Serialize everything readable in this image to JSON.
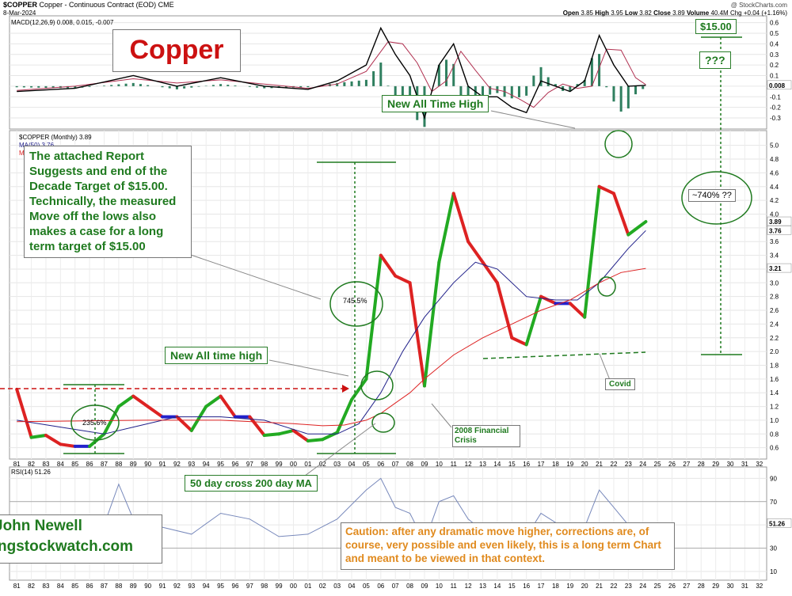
{
  "header": {
    "symbol": "$COPPER",
    "description": "Copper - Continuous Contract (EOD)",
    "exchange": "CME",
    "date": "8-Mar-2024",
    "watermark": "@ StockCharts.com",
    "ohlc": {
      "open_label": "Open",
      "open": "3.85",
      "high_label": "High",
      "high": "3.95",
      "low_label": "Low",
      "low": "3.82",
      "close_label": "Close",
      "close": "3.89",
      "volume_label": "Volume",
      "volume": "40.4M",
      "change": "Chg +0.04 (+1.16%)"
    }
  },
  "legends": {
    "macd": "MACD(12,26,9) 0.008, 0.015, -0.007",
    "price": "$COPPER (Monthly) 3.89",
    "ma50": "MA(50) 3.76",
    "ma200": "MA",
    "rsi": "RSI(14) 51.26"
  },
  "annotations": {
    "title": "Copper",
    "report": "The attached Report Suggests and end of the Decade Target of $15.00. Technically, the measured Move off the lows also makes a case for a long term target of $15.00",
    "new_all_time_high": "New All Time High",
    "new_all_time_high_2": "New All time high",
    "cross": "50 day cross 200 day MA",
    "crisis": "2008 Financial Crisis",
    "covid": "Covid",
    "target": "$15.00",
    "question": "???",
    "pct_future": "~740% ??",
    "pct_745": "745.5%",
    "pct_235": "235.6%",
    "author_name": "John Newell",
    "author_site": "ngstockwatch.com",
    "caution": "Caution: after any dramatic move higher, corrections are, of course, very possible and even likely, this is a long term Chart and meant to be viewed in that context."
  },
  "colors": {
    "up": "#22aa22",
    "down": "#dd2222",
    "neutral": "#2222cc",
    "ma50": "#20208a",
    "ma200": "#dd2222",
    "macd_line": "#000000",
    "signal_line": "#b03050",
    "histogram": "#2f7f5f",
    "annotation_green": "#1f7a1f",
    "caution_orange": "#e08a1e"
  },
  "chart_data": [
    {
      "type": "line",
      "panel": "price",
      "yscale": "linear",
      "ylim": [
        0.55,
        5.1
      ],
      "x_ticks": [
        "81",
        "82",
        "83",
        "84",
        "85",
        "86",
        "87",
        "88",
        "89",
        "90",
        "91",
        "92",
        "93",
        "94",
        "95",
        "96",
        "97",
        "98",
        "99",
        "00",
        "01",
        "02",
        "03",
        "04",
        "05",
        "06",
        "07",
        "08",
        "09",
        "10",
        "11",
        "12",
        "13",
        "14",
        "15",
        "16",
        "17",
        "18",
        "19",
        "20",
        "21",
        "22",
        "23",
        "24",
        "25",
        "26",
        "27",
        "28",
        "29",
        "30",
        "31",
        "32"
      ],
      "y_ticks": [
        "0.6",
        "0.8",
        "1.0",
        "1.2",
        "1.4",
        "1.6",
        "1.8",
        "2.0",
        "2.2",
        "2.4",
        "2.6",
        "2.8",
        "3.0",
        "3.2",
        "3.4",
        "3.6",
        "3.8",
        "4.0",
        "4.2",
        "4.4",
        "4.6",
        "4.8",
        "5.0"
      ],
      "price_badges": [
        "3.89",
        "3.76",
        "3.21"
      ],
      "series": [
        {
          "name": "$COPPER (Monthly)",
          "x": [
            1981,
            1982,
            1983,
            1984,
            1985,
            1986,
            1987,
            1988,
            1989,
            1990,
            1991,
            1992,
            1993,
            1994,
            1995,
            1996,
            1997,
            1998,
            1999,
            2000,
            2001,
            2002,
            2003,
            2004,
            2005,
            2006,
            2007,
            2008,
            2009,
            2010,
            2011,
            2012,
            2013,
            2014,
            2015,
            2016,
            2017,
            2018,
            2019,
            2020,
            2021,
            2022,
            2023,
            2024.2
          ],
          "values": [
            1.45,
            0.75,
            0.78,
            0.65,
            0.62,
            0.62,
            0.8,
            1.2,
            1.35,
            1.2,
            1.05,
            1.05,
            0.85,
            1.2,
            1.35,
            1.05,
            1.05,
            0.78,
            0.8,
            0.85,
            0.7,
            0.72,
            0.82,
            1.3,
            1.6,
            3.4,
            3.1,
            3.0,
            1.5,
            3.3,
            4.3,
            3.6,
            3.3,
            3.0,
            2.2,
            2.1,
            2.8,
            2.7,
            2.7,
            2.5,
            4.4,
            4.3,
            3.7,
            3.89
          ]
        },
        {
          "name": "MA(50)",
          "x": [
            1981,
            1984,
            1987,
            1989,
            1992,
            1995,
            1998,
            2001,
            2003,
            2004.5,
            2006,
            2007.5,
            2009,
            2011,
            2012.5,
            2014,
            2016,
            2018,
            2019.5,
            2021,
            2023,
            2024.2
          ],
          "values": [
            1.0,
            0.9,
            0.8,
            0.9,
            1.05,
            1.05,
            1.0,
            0.8,
            0.8,
            0.95,
            1.4,
            2.0,
            2.5,
            3.0,
            3.3,
            3.2,
            2.8,
            2.75,
            2.75,
            3.0,
            3.5,
            3.76
          ]
        },
        {
          "name": "MA",
          "x": [
            1981,
            1990,
            1995,
            2000,
            2002,
            2003.5,
            2005,
            2006,
            2007,
            2008,
            2009,
            2011,
            2013,
            2015,
            2017,
            2019,
            2021,
            2022.5,
            2024.2
          ],
          "values": [
            0.98,
            1.0,
            1.0,
            0.95,
            0.92,
            0.93,
            1.0,
            1.1,
            1.25,
            1.4,
            1.6,
            1.95,
            2.2,
            2.4,
            2.6,
            2.75,
            3.0,
            3.15,
            3.21
          ]
        }
      ]
    },
    {
      "type": "line",
      "panel": "macd",
      "ylim": [
        -0.33,
        0.62
      ],
      "y_ticks": [
        "-0.3",
        "-0.2",
        "-0.1",
        "0.0",
        "0.1",
        "0.2",
        "0.3",
        "0.4",
        "0.5",
        "0.6"
      ],
      "price_badges": [
        "0.008"
      ],
      "series": [
        {
          "name": "MACD",
          "x": [
            1981,
            1985,
            1989,
            1992,
            1995,
            1998,
            2001,
            2003,
            2005,
            2006,
            2007,
            2008,
            2009,
            2010,
            2011,
            2012,
            2013,
            2014,
            2015,
            2016,
            2017,
            2018,
            2019,
            2020,
            2021,
            2022,
            2023,
            2024.2
          ],
          "values": [
            -0.05,
            -0.02,
            0.1,
            0.0,
            0.08,
            0.0,
            -0.03,
            0.05,
            0.2,
            0.55,
            0.3,
            0.1,
            -0.3,
            0.2,
            0.4,
            0.0,
            -0.1,
            -0.1,
            -0.2,
            -0.25,
            0.05,
            0.0,
            -0.05,
            0.05,
            0.48,
            0.2,
            0.0,
            0.008
          ]
        },
        {
          "name": "Signal",
          "x": [
            1981,
            1985,
            1989,
            1992,
            1995,
            1998,
            2001,
            2003,
            2005,
            2006.5,
            2007.5,
            2008.5,
            2009.5,
            2010.5,
            2011.5,
            2012.5,
            2013.5,
            2014.5,
            2015.5,
            2016.5,
            2017.5,
            2018.5,
            2019.5,
            2020.5,
            2021.5,
            2022.5,
            2023.5,
            2024.2
          ],
          "values": [
            -0.04,
            0.0,
            0.07,
            0.03,
            0.06,
            0.02,
            -0.02,
            0.02,
            0.14,
            0.42,
            0.4,
            0.22,
            -0.05,
            0.05,
            0.33,
            0.15,
            -0.02,
            -0.05,
            -0.12,
            -0.2,
            -0.06,
            0.02,
            -0.02,
            0.0,
            0.35,
            0.34,
            0.08,
            0.015
          ]
        }
      ]
    },
    {
      "type": "line",
      "panel": "rsi",
      "ylim": [
        10,
        95
      ],
      "y_ticks": [
        "10",
        "30",
        "50",
        "70",
        "90"
      ],
      "price_badges": [
        "51.26"
      ],
      "series": [
        {
          "name": "RSI(14)",
          "x": [
            1981,
            1983,
            1985,
            1987,
            1988,
            1989,
            1991,
            1993,
            1995,
            1997,
            1999,
            2001,
            2003,
            2005,
            2006,
            2007,
            2008,
            2009,
            2010,
            2011,
            2012,
            2013,
            2014,
            2015,
            2016,
            2017,
            2018,
            2019,
            2020,
            2021,
            2022,
            2023,
            2024.2
          ],
          "values": [
            55,
            45,
            40,
            50,
            85,
            55,
            48,
            42,
            60,
            55,
            40,
            42,
            55,
            80,
            90,
            65,
            60,
            35,
            70,
            75,
            55,
            45,
            48,
            38,
            40,
            60,
            52,
            45,
            48,
            80,
            65,
            50,
            51.26
          ]
        }
      ]
    }
  ]
}
